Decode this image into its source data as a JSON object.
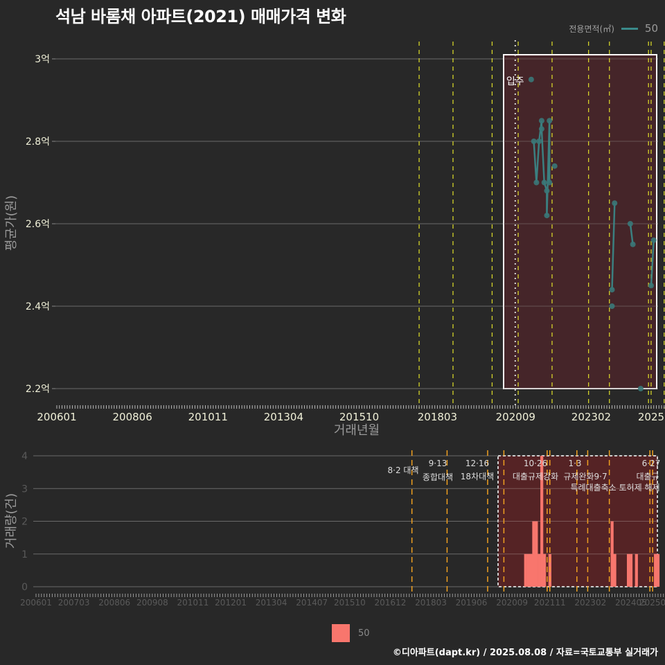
{
  "title": "석남 바롬채 아파트(2021) 매매가격 변화",
  "legend_top": {
    "title": "전용면적(㎡)",
    "item": "50",
    "color": "#3a8a8a"
  },
  "legend_bottom": {
    "item": "50",
    "color": "#f8766d"
  },
  "footer": "©디아파트(dapt.kr) / 2025.08.08 / 자료=국토교통부 실거래가",
  "chart_data": [
    {
      "type": "line",
      "title": "석남 바롬채 아파트(2021) 매매가격 변화",
      "xlabel": "거래년월",
      "ylabel": "평균가(원)",
      "ylim": [
        2.2,
        3.0
      ],
      "y_unit": "억",
      "yticks": [
        "2.2억",
        "2.4억",
        "2.6억",
        "2.8억",
        "3억"
      ],
      "xticks": [
        "200601",
        "200806",
        "201011",
        "201304",
        "201510",
        "201803",
        "202009",
        "202302",
        "2025"
      ],
      "annotation": {
        "label": "입주",
        "x": "202011"
      },
      "highlight_box": {
        "from": "202009",
        "to": "202508"
      },
      "policy_lines": [
        "201708",
        "201809",
        "201912",
        "202010",
        "202111",
        "202301",
        "202309",
        "202412",
        "202501",
        "202506"
      ],
      "series": [
        {
          "name": "50",
          "points": [
            {
              "x": "202103",
              "y": 2.95
            },
            {
              "x": "202104",
              "y": 2.8
            },
            {
              "x": "202105",
              "y": 2.7
            },
            {
              "x": "202106",
              "y": 2.8
            },
            {
              "x": "202107",
              "y": 2.85
            },
            {
              "x": "202107",
              "y": 2.83
            },
            {
              "x": "202108",
              "y": 2.7
            },
            {
              "x": "202109",
              "y": 2.68
            },
            {
              "x": "202109",
              "y": 2.62
            },
            {
              "x": "202110",
              "y": 2.85
            },
            {
              "x": "202110",
              "y": 2.7
            },
            {
              "x": "202112",
              "y": 2.74
            },
            {
              "x": "202310",
              "y": 2.44
            },
            {
              "x": "202310",
              "y": 2.4
            },
            {
              "x": "202311",
              "y": 2.65
            },
            {
              "x": "202405",
              "y": 2.6
            },
            {
              "x": "202406",
              "y": 2.55
            },
            {
              "x": "202409",
              "y": 2.2
            },
            {
              "x": "202501",
              "y": 2.45
            },
            {
              "x": "202502",
              "y": 2.56
            }
          ]
        }
      ]
    },
    {
      "type": "bar",
      "xlabel": "",
      "ylabel": "거래량(건)",
      "ylim": [
        0,
        4
      ],
      "yticks": [
        "0",
        "1",
        "2",
        "3",
        "4"
      ],
      "xticks": [
        "200601",
        "200703",
        "200806",
        "200908",
        "201011",
        "201201",
        "201304",
        "201407",
        "201510",
        "201612",
        "201803",
        "201906",
        "202009",
        "202111",
        "202302",
        "202405",
        "20250"
      ],
      "policy_annotations": [
        {
          "date": "8·2 대책",
          "x": "201708"
        },
        {
          "date": "9·13",
          "label": "종합대책",
          "x": "201809"
        },
        {
          "date": "12·16",
          "label": "18차대책",
          "x": "201912"
        },
        {
          "date": "10·26",
          "label": "대출규제강화",
          "x": "202110"
        },
        {
          "date": "1·3",
          "label": "규제완화",
          "x": "202301"
        },
        {
          "date": "9·7",
          "label": "특례대출축소 토허제 해제",
          "x": "202309"
        },
        {
          "date": "6·27",
          "label": "대출규",
          "x": "202506"
        }
      ],
      "series": [
        {
          "name": "50",
          "bars": [
            {
              "x": "202102",
              "y": 1
            },
            {
              "x": "202103",
              "y": 1
            },
            {
              "x": "202104",
              "y": 1
            },
            {
              "x": "202105",
              "y": 2
            },
            {
              "x": "202106",
              "y": 2
            },
            {
              "x": "202107",
              "y": 1
            },
            {
              "x": "202108",
              "y": 4
            },
            {
              "x": "202109",
              "y": 1
            },
            {
              "x": "202111",
              "y": 1
            },
            {
              "x": "202310",
              "y": 2
            },
            {
              "x": "202311",
              "y": 1
            },
            {
              "x": "202404",
              "y": 1
            },
            {
              "x": "202405",
              "y": 1
            },
            {
              "x": "202407",
              "y": 1
            },
            {
              "x": "202502",
              "y": 1
            },
            {
              "x": "202503",
              "y": 1
            }
          ]
        }
      ]
    }
  ]
}
